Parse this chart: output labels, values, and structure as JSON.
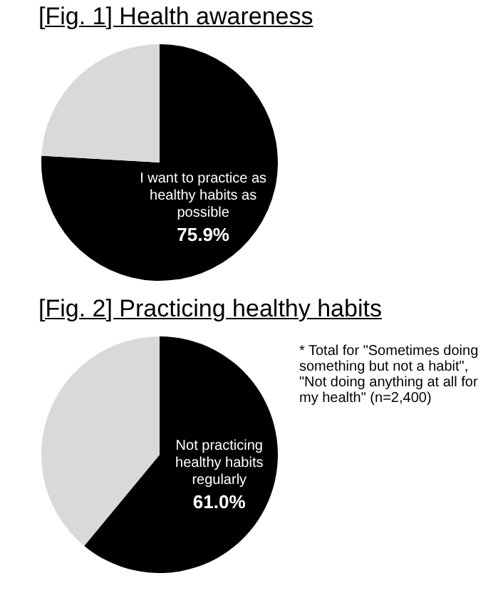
{
  "chart_data": [
    {
      "type": "pie",
      "title": "[Fig. 1] Health awareness",
      "categories": [
        "I want to practice as healthy habits as possible",
        null
      ],
      "values": [
        75.9,
        24.1
      ],
      "colors": [
        "#000000",
        "#d9d9d9"
      ],
      "value_labels": [
        "75.9%",
        null
      ],
      "legend": false
    },
    {
      "type": "pie",
      "title": "[Fig. 2] Practicing healthy habits",
      "categories": [
        "Not practicing healthy habits regularly",
        null
      ],
      "values": [
        61.0,
        39.0
      ],
      "colors": [
        "#000000",
        "#d9d9d9"
      ],
      "value_labels": [
        "61.0%",
        null
      ],
      "legend": false,
      "annotations": [
        "*  Total for \"Sometimes doing something but not a habit\", \"Not doing anything at all for my health\" (n=2,400)"
      ]
    }
  ]
}
